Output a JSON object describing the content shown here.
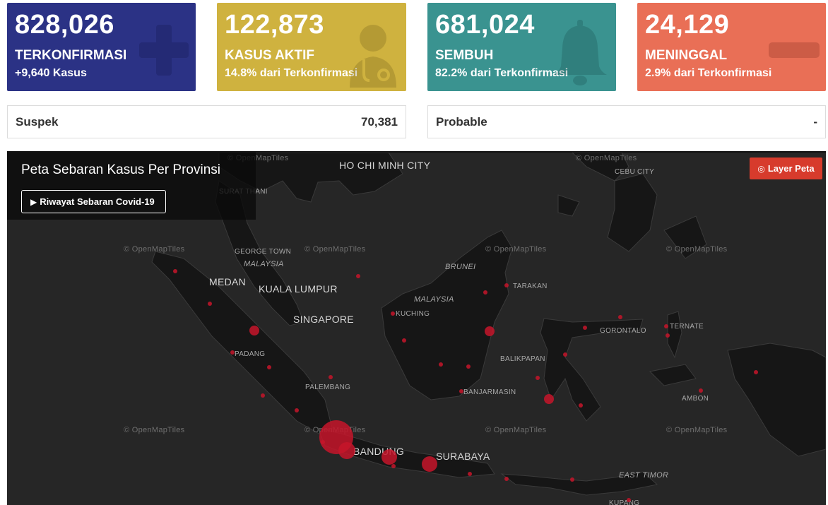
{
  "stats": {
    "confirmed": {
      "value": "828,026",
      "label": "TERKONFIRMASI",
      "sub": "+9,640 Kasus",
      "color": "#2b3285",
      "icon": "plus-icon"
    },
    "active": {
      "value": "122,873",
      "label": "KASUS AKTIF",
      "sub": "14.8% dari Terkonfirmasi",
      "color": "#cfb23f",
      "icon": "doctor-icon"
    },
    "recovered": {
      "value": "681,024",
      "label": "SEMBUH",
      "sub": "82.2% dari Terkonfirmasi",
      "color": "#3a9390",
      "icon": "bell-icon"
    },
    "death": {
      "value": "24,129",
      "label": "MENINGGAL",
      "sub": "2.9% dari Terkonfirmasi",
      "color": "#e96f56",
      "icon": "minus-icon"
    }
  },
  "suspek": {
    "label": "Suspek",
    "value": "70,381"
  },
  "probable": {
    "label": "Probable",
    "value": "-"
  },
  "map": {
    "title": "Peta Sebaran Kasus Per Provinsi",
    "history_button": "Riwayat Sebaran Covid-19",
    "layer_button": "Layer Peta",
    "attribution": "© OpenMapTiles",
    "labels": {
      "ho_chi_minh": "HO CHI MINH CITY",
      "cebu": "CEBU CITY",
      "surat_thani": "SURAT THANI",
      "george_town": "GEORGE TOWN",
      "malaysia_w": "MALAYSIA",
      "medan": "MEDAN",
      "kuala_lumpur": "KUALA LUMPUR",
      "singapore": "SINGAPORE",
      "brunei": "BRUNEI",
      "malaysia_e": "MALAYSIA",
      "tarakan": "TARAKAN",
      "kuching": "KUCHING",
      "gorontalo": "GORONTALO",
      "ternate": "TERNATE",
      "padang": "PADANG",
      "balikpapan": "BALIKPAPAN",
      "palembang": "PALEMBANG",
      "banjarmasin": "BANJARMASIN",
      "ambon": "AMBON",
      "bandung": "BANDUNG",
      "surabaya": "SURABAYA",
      "east_timor": "EAST TIMOR",
      "kupang": "KUPANG"
    }
  }
}
